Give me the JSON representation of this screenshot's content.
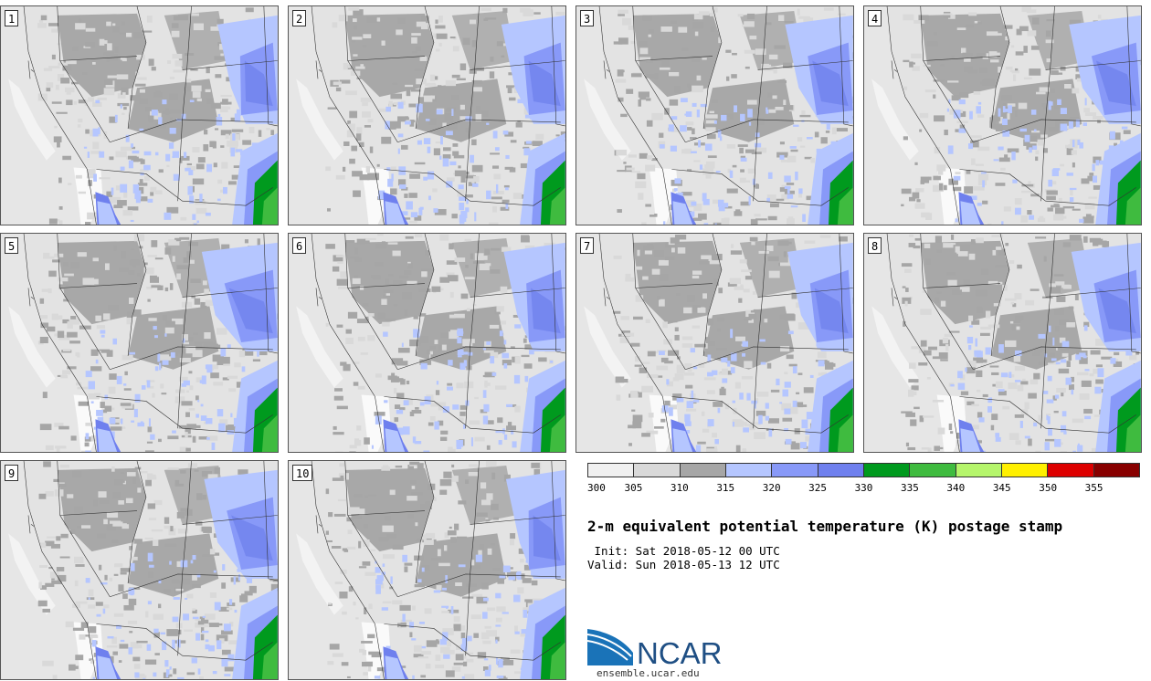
{
  "panels": [
    {
      "label": "1"
    },
    {
      "label": "2"
    },
    {
      "label": "3"
    },
    {
      "label": "4"
    },
    {
      "label": "5"
    },
    {
      "label": "6"
    },
    {
      "label": "7"
    },
    {
      "label": "8"
    },
    {
      "label": "9"
    },
    {
      "label": "10"
    }
  ],
  "colorbar": {
    "colors": [
      "#f0f0f0",
      "#d9d9d9",
      "#a6a6a6",
      "#b5c6ff",
      "#8899f8",
      "#6f80ee",
      "#009a1e",
      "#3fbb3f",
      "#b5f56b",
      "#fff000",
      "#dd0000",
      "#880000"
    ],
    "tick_labels": [
      "300",
      "305",
      "310",
      "315",
      "320",
      "325",
      "330",
      "335",
      "340",
      "345",
      "350",
      "355"
    ]
  },
  "title": "2-m equivalent potential temperature (K) postage stamp",
  "init": " Init: Sat 2018-05-12 00 UTC",
  "valid": "Valid: Sun 2018-05-13 12 UTC",
  "logo": {
    "text": "NCAR",
    "url": "ensemble.ucar.edu"
  }
}
